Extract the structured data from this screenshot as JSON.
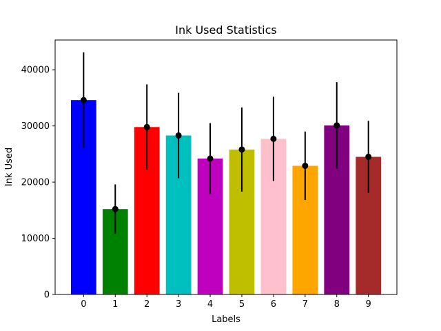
{
  "chart_data": {
    "type": "bar",
    "title": "Ink Used Statistics",
    "xlabel": "Labels",
    "ylabel": "Ink Used",
    "categories": [
      "0",
      "1",
      "2",
      "3",
      "4",
      "5",
      "6",
      "7",
      "8",
      "9"
    ],
    "values": [
      34600,
      15200,
      29800,
      28300,
      24200,
      25800,
      27700,
      22900,
      30100,
      24500
    ],
    "errors": [
      8500,
      4400,
      7600,
      7600,
      6300,
      7500,
      7500,
      6100,
      7700,
      6400
    ],
    "colors": [
      "#0000ff",
      "#008000",
      "#ff0000",
      "#00bfbf",
      "#bf00bf",
      "#bfbf00",
      "#ffc0cb",
      "#ffa500",
      "#800080",
      "#a52a2a"
    ],
    "ylim": [
      0,
      45300
    ],
    "yticks": [
      0,
      10000,
      20000,
      30000,
      40000
    ],
    "ytick_labels": [
      "0",
      "10000",
      "20000",
      "30000",
      "40000"
    ],
    "grid": false,
    "error_marker": "black dot with vertical error bar"
  }
}
